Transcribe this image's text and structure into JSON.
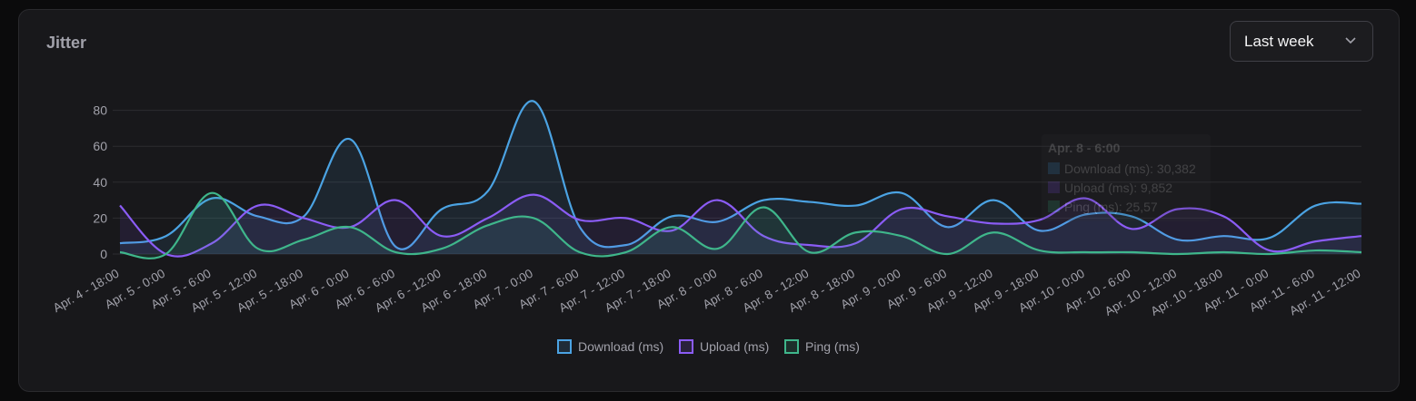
{
  "card": {
    "title": "Jitter",
    "range_select": {
      "value": "Last week",
      "icon": "chevron-down-icon"
    }
  },
  "colors": {
    "download": "#4ba3e3",
    "upload": "#8b5cf6",
    "ping": "#3fb68b",
    "grid": "#2c2c30",
    "tick": "#a1a1aa",
    "background": "#18181b"
  },
  "chart_data": {
    "type": "area",
    "title": "Jitter",
    "categories": [
      "Apr. 4 - 18:00",
      "Apr. 5 - 0:00",
      "Apr. 5 - 6:00",
      "Apr. 5 - 12:00",
      "Apr. 5 - 18:00",
      "Apr. 6 - 0:00",
      "Apr. 6 - 6:00",
      "Apr. 6 - 12:00",
      "Apr. 6 - 18:00",
      "Apr. 7 - 0:00",
      "Apr. 7 - 6:00",
      "Apr. 7 - 12:00",
      "Apr. 7 - 18:00",
      "Apr. 8 - 0:00",
      "Apr. 8 - 6:00",
      "Apr. 8 - 12:00",
      "Apr. 8 - 18:00",
      "Apr. 9 - 0:00",
      "Apr. 9 - 6:00",
      "Apr. 9 - 12:00",
      "Apr. 9 - 18:00",
      "Apr. 10 - 0:00",
      "Apr. 10 - 6:00",
      "Apr. 10 - 12:00",
      "Apr. 10 - 18:00",
      "Apr. 11 - 0:00",
      "Apr. 11 - 6:00",
      "Apr. 11 - 12:00"
    ],
    "x": [
      0,
      0.5,
      1,
      1.5,
      2,
      2.5,
      3,
      3.5,
      4,
      4.5,
      5,
      5.5,
      6,
      6.5,
      7,
      7.5,
      8,
      8.5,
      9,
      9.5,
      10,
      10.5,
      11,
      11.5,
      12,
      12.5,
      13,
      13.5,
      14,
      14.5,
      15,
      15.5,
      16,
      16.5,
      17,
      17.5,
      18,
      18.5,
      19,
      19.5,
      20,
      20.5,
      21,
      21.5,
      22,
      22.5,
      23,
      23.5,
      24,
      24.5,
      25,
      25.5,
      26,
      26.5,
      27
    ],
    "series": [
      {
        "name": "Download (ms)",
        "values": [
          6,
          10,
          31,
          21,
          21,
          64,
          4,
          25,
          35,
          85,
          15,
          5,
          21,
          18,
          30,
          29,
          27,
          34,
          15,
          30,
          13,
          22,
          21,
          8,
          10,
          9,
          27,
          28
        ]
      },
      {
        "name": "Upload (ms)",
        "values": [
          27,
          0,
          6,
          27,
          20,
          15,
          30,
          10,
          20,
          33,
          19,
          20,
          13,
          30,
          10,
          5,
          6,
          25,
          21,
          17,
          19,
          31,
          14,
          25,
          21,
          2,
          7,
          10
        ]
      },
      {
        "name": "Ping (ms)",
        "values": [
          1,
          0,
          34,
          3,
          8,
          15,
          1,
          3,
          16,
          20,
          1,
          1,
          15,
          3,
          26,
          1,
          12,
          10,
          0,
          12,
          2,
          1,
          1,
          0,
          1,
          0,
          2,
          1
        ]
      }
    ],
    "xlabel": "",
    "ylabel": "",
    "yticks": [
      0,
      20,
      40,
      60,
      80
    ],
    "ylim": [
      0,
      90
    ],
    "grid": true,
    "legend": "bottom",
    "tooltip": {
      "title": "Apr. 8 - 6:00",
      "lines": [
        "Download (ms): 30,382",
        "Upload (ms): 9,852",
        "Ping (ms): 25,57"
      ]
    }
  }
}
